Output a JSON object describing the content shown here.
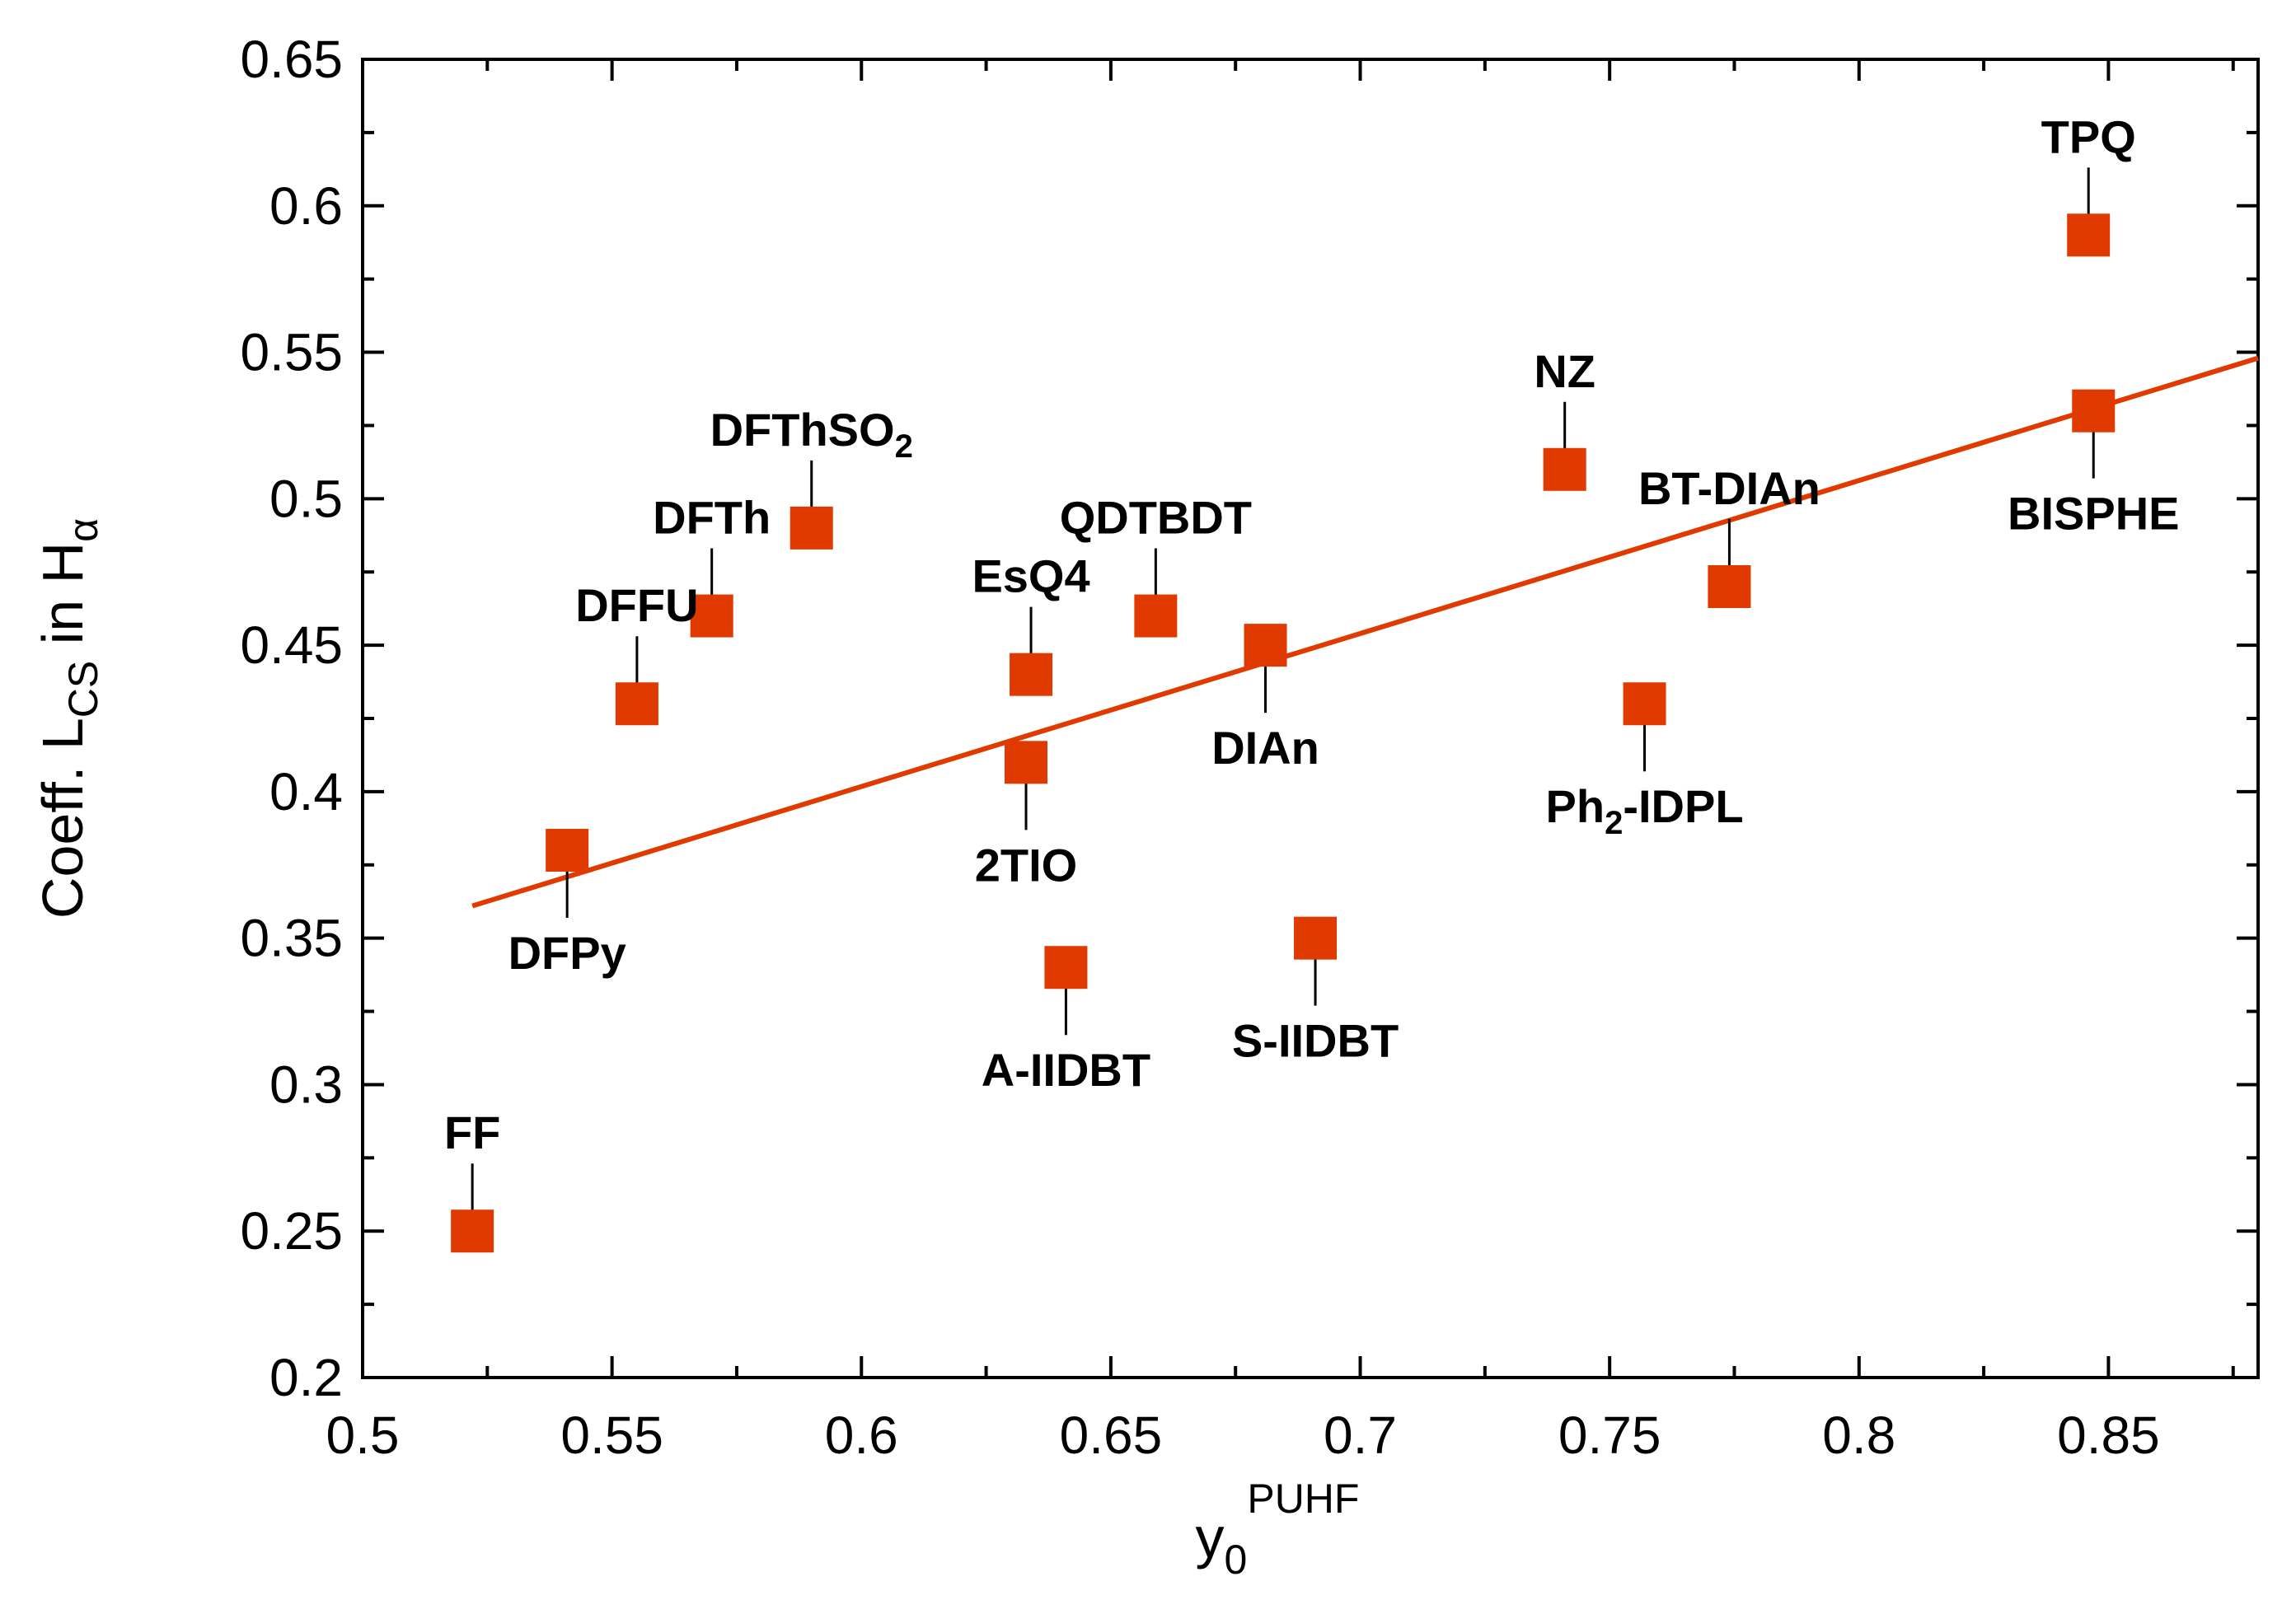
{
  "chart_data": {
    "type": "scatter",
    "title": "",
    "xlabel": {
      "base": "y",
      "sub": "0",
      "sup": "PUHF"
    },
    "ylabel": {
      "prefix": "Coeff. L",
      "sub": "CS",
      "middle": " in H",
      "sub2": "α"
    },
    "xlim": [
      0.5,
      0.88
    ],
    "ylim": [
      0.2,
      0.65
    ],
    "xticks": [
      0.5,
      0.55,
      0.6,
      0.65,
      0.7,
      0.75,
      0.8,
      0.85
    ],
    "xtick_labels": [
      "0.5",
      "0.55",
      "0.6",
      "0.65",
      "0.7",
      "0.75",
      "0.8",
      "0.85"
    ],
    "yticks": [
      0.2,
      0.25,
      0.3,
      0.35,
      0.4,
      0.45,
      0.5,
      0.55,
      0.6,
      0.65
    ],
    "ytick_labels": [
      "0.2",
      "0.25",
      "0.3",
      "0.35",
      "0.4",
      "0.45",
      "0.5",
      "0.55",
      "0.6",
      "0.65"
    ],
    "grid": false,
    "marker_color": "#e03a00",
    "fit_line_color": "#e03a00",
    "fit_line": {
      "x": [
        0.522,
        0.88
      ],
      "y": [
        0.361,
        0.548
      ]
    },
    "points": [
      {
        "name": "FF",
        "sub": "",
        "suffix": "",
        "x": 0.522,
        "y": 0.25,
        "label_pos": "above"
      },
      {
        "name": "DFPy",
        "sub": "",
        "suffix": "",
        "x": 0.541,
        "y": 0.38,
        "label_pos": "below"
      },
      {
        "name": "DFFU",
        "sub": "",
        "suffix": "",
        "x": 0.555,
        "y": 0.43,
        "label_pos": "above"
      },
      {
        "name": "DFTh",
        "sub": "",
        "suffix": "",
        "x": 0.57,
        "y": 0.46,
        "label_pos": "above"
      },
      {
        "name": "DFThSO",
        "sub": "2",
        "suffix": "",
        "x": 0.59,
        "y": 0.49,
        "label_pos": "above"
      },
      {
        "name": "EsQ4",
        "sub": "",
        "suffix": "",
        "x": 0.634,
        "y": 0.44,
        "label_pos": "above"
      },
      {
        "name": "2TIO",
        "sub": "",
        "suffix": "",
        "x": 0.633,
        "y": 0.41,
        "label_pos": "below"
      },
      {
        "name": "A-IIDBT",
        "sub": "",
        "suffix": "",
        "x": 0.641,
        "y": 0.34,
        "label_pos": "below"
      },
      {
        "name": "QDTBDT",
        "sub": "",
        "suffix": "",
        "x": 0.659,
        "y": 0.46,
        "label_pos": "above"
      },
      {
        "name": "DIAn",
        "sub": "",
        "suffix": "",
        "x": 0.681,
        "y": 0.45,
        "label_pos": "below"
      },
      {
        "name": "S-IIDBT",
        "sub": "",
        "suffix": "",
        "x": 0.691,
        "y": 0.35,
        "label_pos": "below"
      },
      {
        "name": "NZ",
        "sub": "",
        "suffix": "",
        "x": 0.741,
        "y": 0.51,
        "label_pos": "above"
      },
      {
        "name": "Ph",
        "sub": "2",
        "suffix": "-IDPL",
        "x": 0.757,
        "y": 0.43,
        "label_pos": "below"
      },
      {
        "name": "BT-DIAn",
        "sub": "",
        "suffix": "",
        "x": 0.774,
        "y": 0.47,
        "label_pos": "above"
      },
      {
        "name": "TPQ",
        "sub": "",
        "suffix": "",
        "x": 0.846,
        "y": 0.59,
        "label_pos": "above"
      },
      {
        "name": "BISPHE",
        "sub": "",
        "suffix": "",
        "x": 0.847,
        "y": 0.53,
        "label_pos": "below"
      }
    ]
  }
}
